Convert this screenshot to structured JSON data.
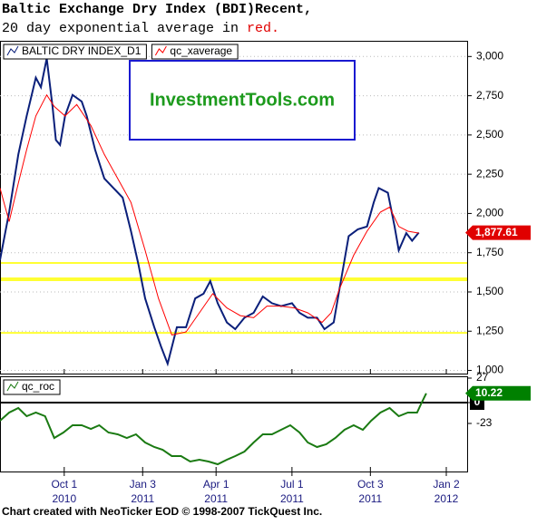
{
  "title": "Baltic Exchange Dry Index (BDI)Recent,",
  "subtitle": "20 day exponential average in ",
  "subtitle_highlight": "red.",
  "footer": "Chart created with NeoTicker EOD © 1998-2007 TickQuest Inc.",
  "logo": "InvestmentTools.com",
  "chart_data": [
    {
      "type": "line",
      "xlim": [
        -77,
        483
      ],
      "ylim": [
        980,
        3100
      ],
      "yticks": [
        {
          "value": 1000,
          "label": "1,000"
        },
        {
          "value": 1250,
          "label": "1,250"
        },
        {
          "value": 1500,
          "label": "1,500"
        },
        {
          "value": 1750,
          "label": "1,750"
        },
        {
          "value": 2000,
          "label": "2,000"
        },
        {
          "value": 2250,
          "label": "2,250"
        },
        {
          "value": 2500,
          "label": "2,500"
        },
        {
          "value": 2750,
          "label": "2,750"
        },
        {
          "value": 3000,
          "label": "3,000"
        }
      ],
      "xticks": [
        0,
        94,
        182,
        273,
        367,
        458
      ],
      "grid": true,
      "hlines": [
        {
          "value": 1685,
          "width": 2
        },
        {
          "value": 1581,
          "width": 4
        },
        {
          "value": 1239,
          "width": 2
        }
      ],
      "hline_color": "#ffff33",
      "series": [
        {
          "name": "BALTIC DRY INDEX_D1",
          "color": "#0a1f7a",
          "x": [
            -77,
            -66,
            -55,
            -45,
            -34,
            -28,
            -21,
            -14,
            -10,
            -5,
            1,
            10,
            21,
            27,
            37,
            48,
            59,
            70,
            80,
            89,
            97,
            108,
            116,
            124,
            135,
            146,
            157,
            167,
            175,
            184,
            195,
            205,
            216,
            227,
            238,
            249,
            260,
            273,
            282,
            292,
            303,
            312,
            323,
            330,
            341,
            352,
            363,
            371,
            377,
            388,
            396,
            401,
            410,
            417,
            425
          ],
          "values": [
            1703,
            2009,
            2376,
            2621,
            2865,
            2804,
            2988,
            2682,
            2468,
            2437,
            2621,
            2755,
            2713,
            2621,
            2407,
            2223,
            2162,
            2101,
            1887,
            1673,
            1459,
            1275,
            1153,
            1043,
            1275,
            1275,
            1459,
            1489,
            1569,
            1428,
            1306,
            1263,
            1336,
            1367,
            1471,
            1428,
            1410,
            1428,
            1367,
            1336,
            1336,
            1263,
            1306,
            1520,
            1856,
            1899,
            1917,
            2070,
            2162,
            2132,
            1917,
            1765,
            1875,
            1826,
            1878
          ]
        },
        {
          "name": "qc_xaverage",
          "color": "#ff0000",
          "x": [
            -77,
            -66,
            -55,
            -45,
            -34,
            -21,
            -12,
            1,
            15,
            32,
            48,
            64,
            80,
            97,
            113,
            129,
            146,
            162,
            178,
            195,
            211,
            227,
            243,
            260,
            276,
            292,
            309,
            320,
            330,
            347,
            363,
            379,
            390,
            401,
            412,
            425
          ],
          "values": [
            2162,
            1948,
            2193,
            2407,
            2621,
            2755,
            2682,
            2621,
            2694,
            2560,
            2376,
            2223,
            2070,
            1765,
            1459,
            1226,
            1245,
            1367,
            1489,
            1398,
            1349,
            1336,
            1410,
            1410,
            1398,
            1367,
            1306,
            1367,
            1520,
            1734,
            1887,
            2009,
            2040,
            1917,
            1887,
            1875
          ]
        }
      ],
      "last_label": {
        "value": 1877.61,
        "label": "1,877.61",
        "color": "#e00000"
      }
    },
    {
      "type": "line",
      "xlim": [
        -77,
        483
      ],
      "ylim": [
        -76,
        29
      ],
      "yticks": [
        27,
        0,
        -23
      ],
      "xticks": [
        {
          "value": 0,
          "label": "Oct 1",
          "year": "2010"
        },
        {
          "value": 94,
          "label": "Jan 3",
          "year": "2011"
        },
        {
          "value": 182,
          "label": "Apr 1",
          "year": "2011"
        },
        {
          "value": 273,
          "label": "Jul 1",
          "year": "2011"
        },
        {
          "value": 367,
          "label": "Oct 3",
          "year": "2011"
        },
        {
          "value": 458,
          "label": "Jan 2",
          "year": "2012"
        }
      ],
      "series": [
        {
          "name": "qc_roc",
          "color": "#1a7a12",
          "x": [
            -77,
            -66,
            -55,
            -45,
            -34,
            -23,
            -12,
            -1,
            10,
            21,
            32,
            42,
            53,
            64,
            75,
            86,
            97,
            108,
            118,
            129,
            140,
            151,
            162,
            173,
            184,
            195,
            205,
            216,
            227,
            238,
            249,
            260,
            271,
            282,
            292,
            303,
            314,
            325,
            336,
            347,
            358,
            368,
            379,
            390,
            401,
            412,
            423,
            428,
            434
          ],
          "values": [
            -20,
            -11,
            -6,
            -15,
            -11,
            -15,
            -39,
            -33,
            -25,
            -25,
            -29,
            -25,
            -33,
            -35,
            -39,
            -35,
            -44,
            -49,
            -52,
            -59,
            -59,
            -65,
            -63,
            -65,
            -68,
            -63,
            -59,
            -54,
            -44,
            -35,
            -35,
            -30,
            -25,
            -33,
            -44,
            -49,
            -46,
            -39,
            -30,
            -25,
            -30,
            -20,
            -11,
            -6,
            -15,
            -11,
            -11,
            -1,
            10.22
          ]
        }
      ],
      "last_label": {
        "value": 10.22,
        "label": "10.22",
        "color": "#008000"
      }
    }
  ]
}
